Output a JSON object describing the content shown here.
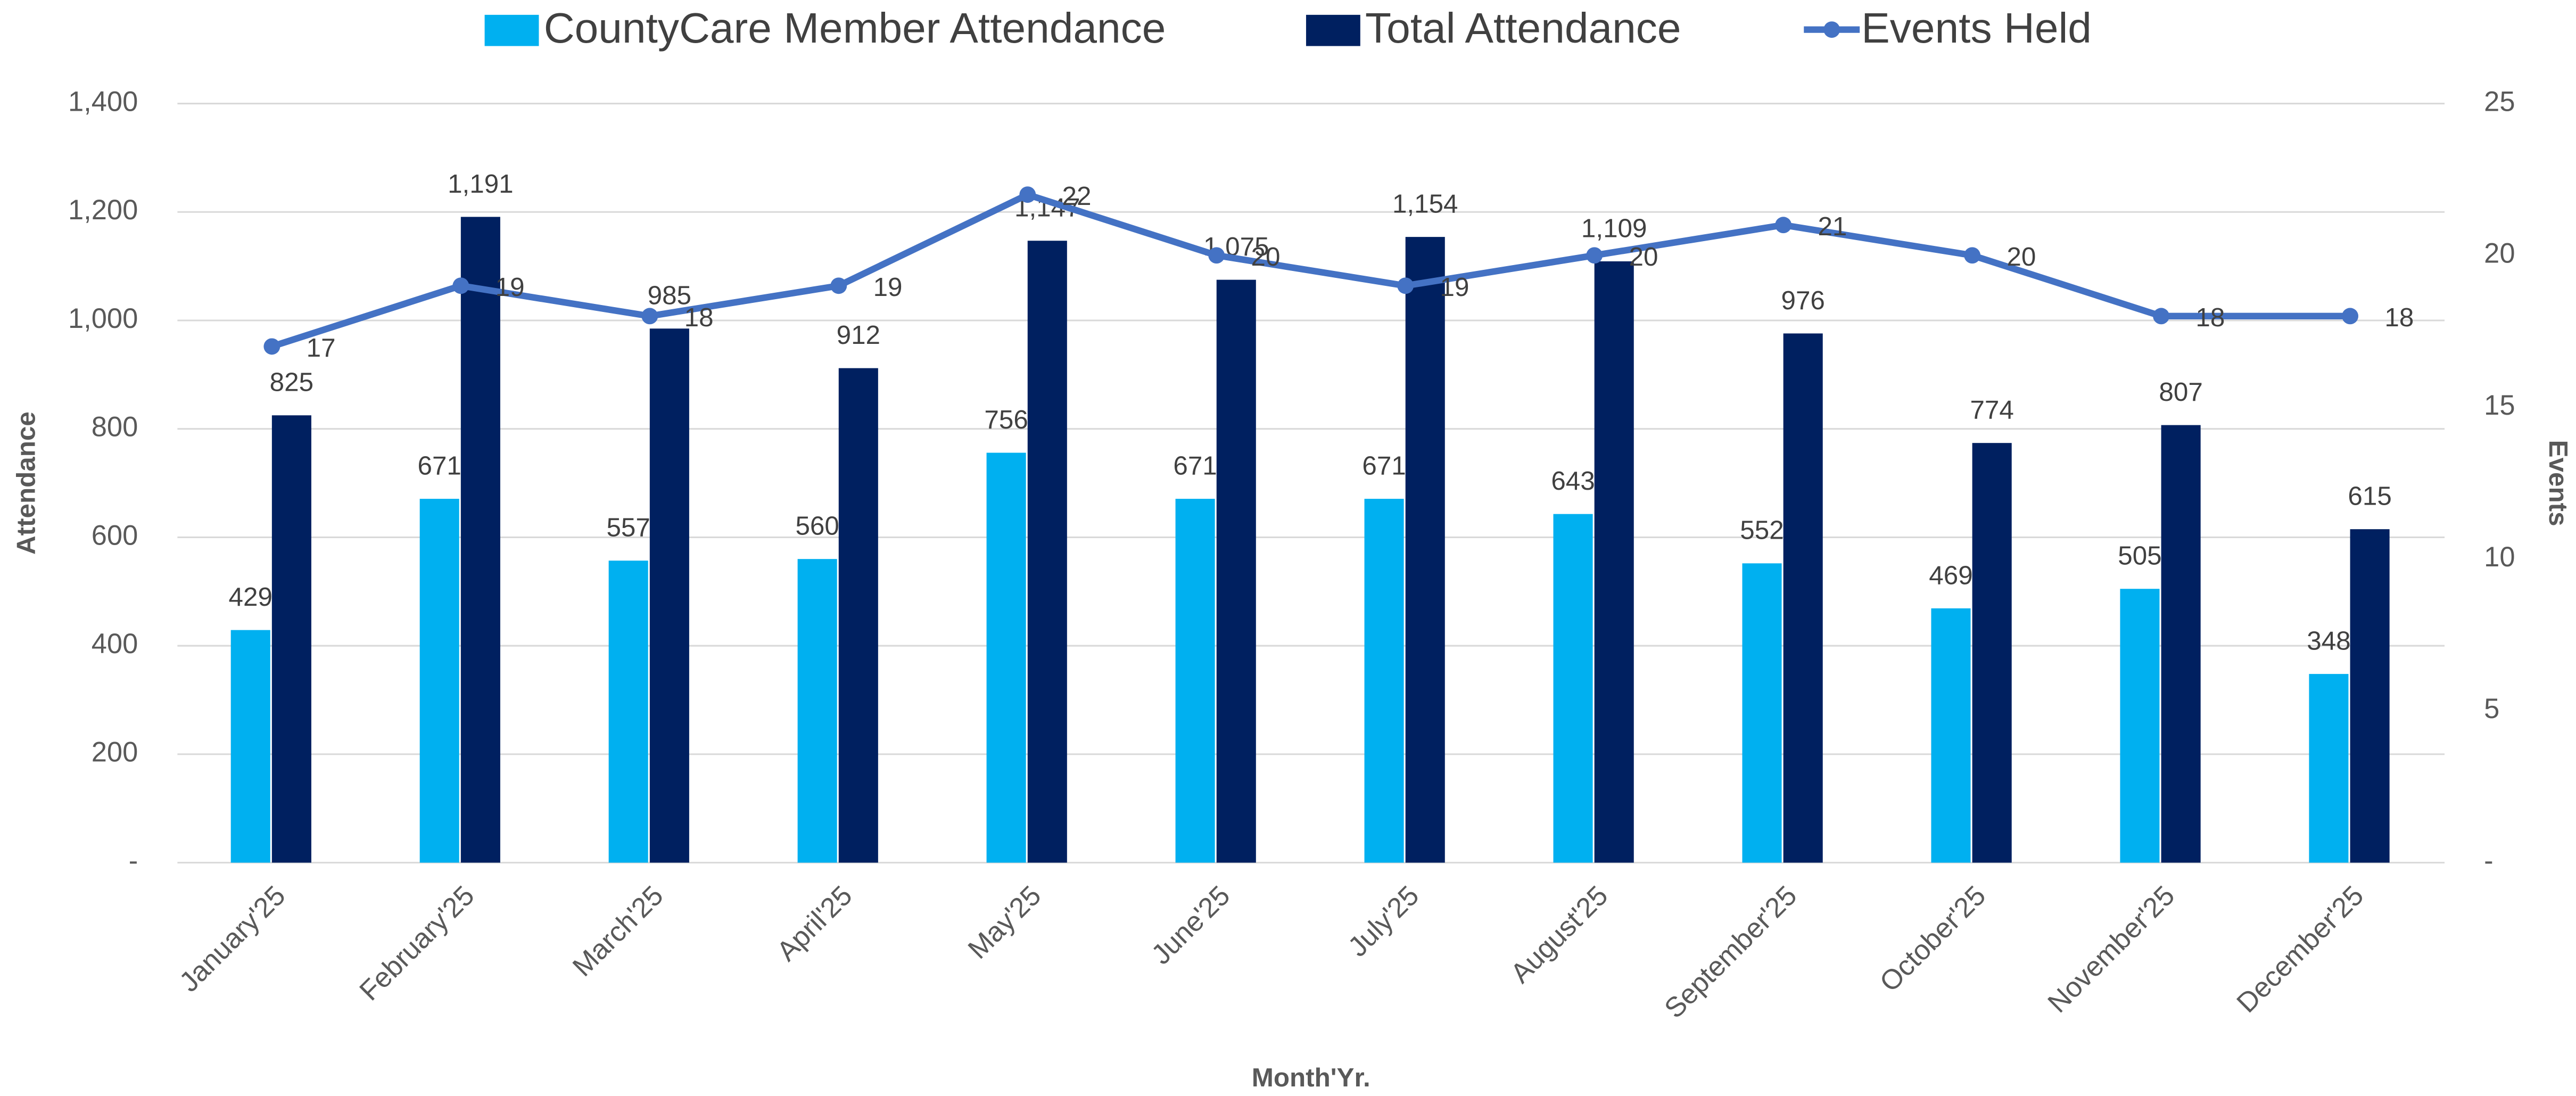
{
  "chart_data": {
    "type": "bar",
    "x_label": "Month'Yr.",
    "y_label": "Attendance",
    "y2_label": "Events",
    "categories": [
      "January'25",
      "February'25",
      "March'25",
      "April'25",
      "May'25",
      "June'25",
      "July'25",
      "August'25",
      "September'25",
      "October'25",
      "November'25",
      "December'25"
    ],
    "series": [
      {
        "name": "CountyCare Member Attendance",
        "color": "#00b0f0",
        "type": "bar",
        "values": [
          429,
          671,
          557,
          560,
          756,
          671,
          671,
          643,
          552,
          469,
          505,
          348
        ]
      },
      {
        "name": "Total Attendance",
        "color": "#002060",
        "type": "bar",
        "values": [
          825,
          1191,
          985,
          912,
          1147,
          1075,
          1154,
          1109,
          976,
          774,
          807,
          615
        ],
        "value_labels": [
          "825",
          "1,191",
          "985",
          "912",
          "1,147",
          "1,075",
          "1,154",
          "1,109",
          "976",
          "774",
          "807",
          "615"
        ]
      },
      {
        "name": "Events Held",
        "color": "#4472c4",
        "type": "line",
        "axis": "y2",
        "values": [
          17,
          19,
          18,
          19,
          22,
          20,
          19,
          20,
          21,
          20,
          18,
          18
        ]
      }
    ],
    "ylim": [
      0,
      1400
    ],
    "yticks": [
      {
        "value": 0,
        "label": "-"
      },
      200,
      400,
      600,
      800,
      {
        "value": 1000,
        "label": "1,000"
      },
      {
        "value": 1200,
        "label": "1,200"
      },
      {
        "value": 1400,
        "label": "1,400"
      }
    ],
    "y2lim": [
      0,
      25
    ],
    "y2ticks": [
      {
        "value": 0,
        "label": "-"
      },
      5,
      10,
      15,
      20,
      25
    ],
    "grid": true,
    "legend": "top"
  }
}
